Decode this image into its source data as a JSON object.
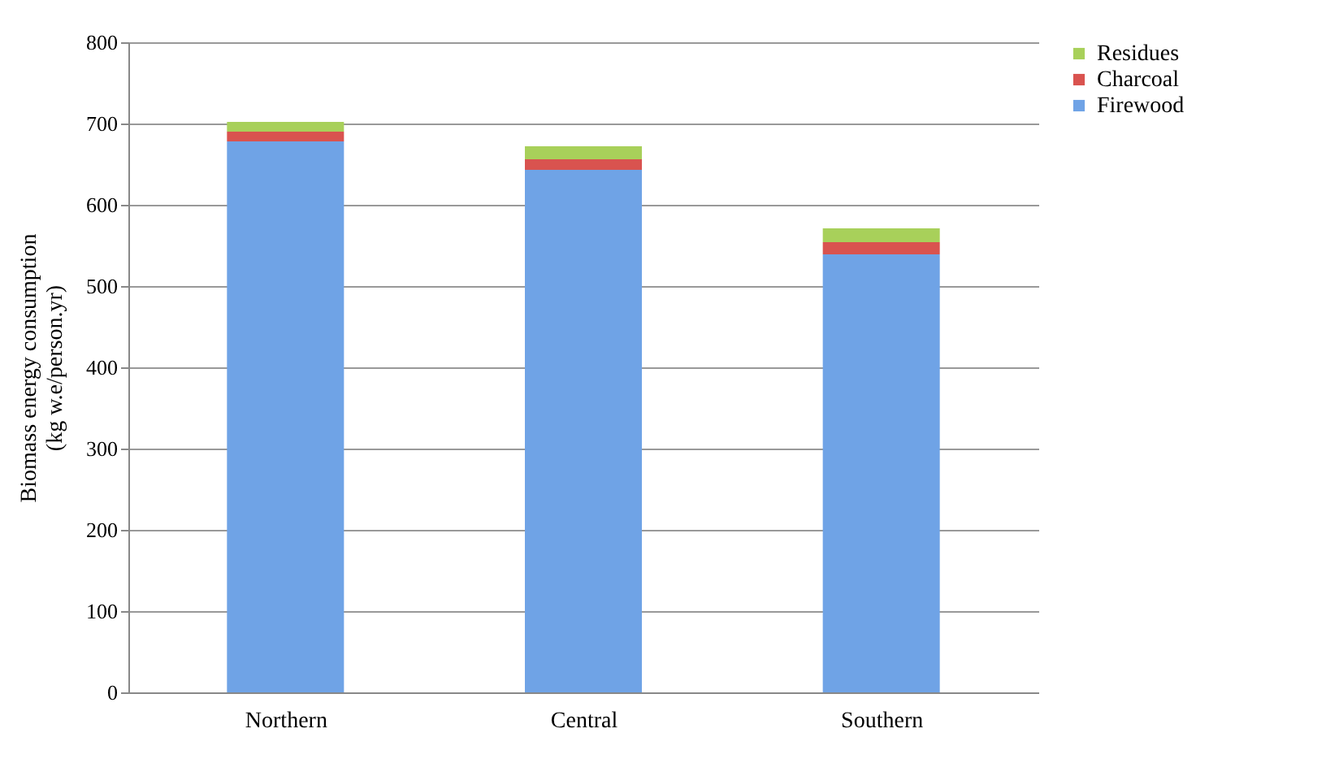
{
  "chart_data": {
    "type": "bar",
    "stacked": true,
    "ylabel": "Biomass energy consumption\n(kg w.e/person.yr)",
    "categories": [
      "Northern",
      "Central",
      "Southern"
    ],
    "series": [
      {
        "name": "Firewood",
        "color": "#6fa3e6",
        "values": [
          678,
          643,
          539
        ]
      },
      {
        "name": "Charcoal",
        "color": "#d9534f",
        "values": [
          12,
          13,
          15
        ]
      },
      {
        "name": "Residues",
        "color": "#a8d05a",
        "values": [
          12,
          16,
          17
        ]
      }
    ],
    "ylim": [
      0,
      800
    ],
    "yticks": [
      0,
      100,
      200,
      300,
      400,
      500,
      600,
      700,
      800
    ],
    "grid": "y",
    "legend": "right"
  }
}
